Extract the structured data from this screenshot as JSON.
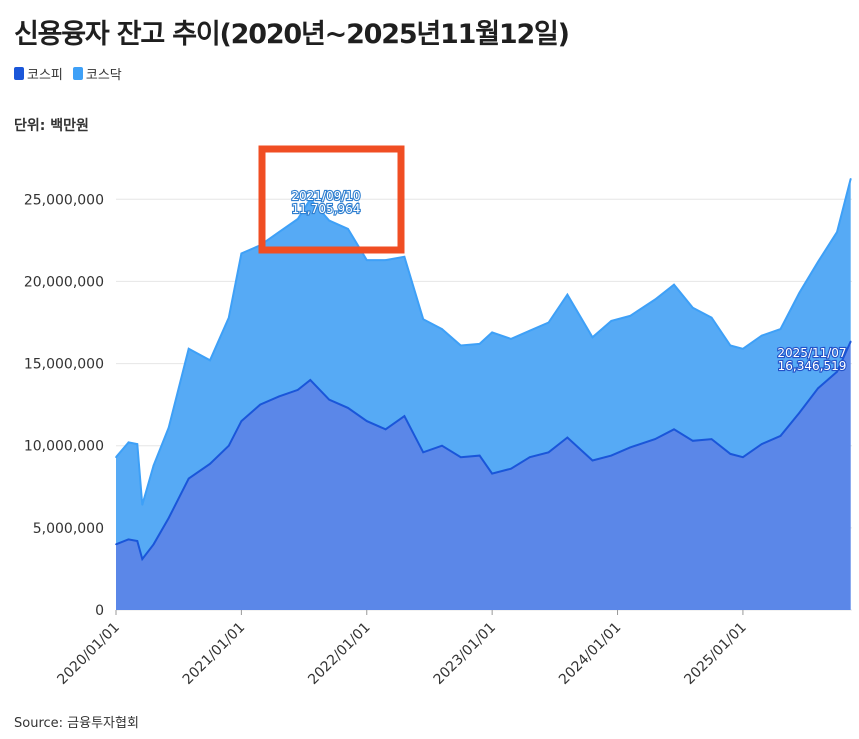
{
  "title": "신용융자 잔고 추이(2020년~2025년11월12일)",
  "legend": [
    {
      "label": "코스피",
      "color": "#1a56d9"
    },
    {
      "label": "코스닥",
      "color": "#3ea0f7"
    }
  ],
  "unit_label": "단위: 백만원",
  "source": "Source: 금융투자협회",
  "chart_data": {
    "type": "area",
    "stacked": true,
    "y_ticks": [
      "0",
      "5,000,000",
      "10,000,000",
      "15,000,000",
      "20,000,000",
      "25,000,000"
    ],
    "y_tick_values": [
      0,
      5000000,
      10000000,
      15000000,
      20000000,
      25000000
    ],
    "ylim": [
      0,
      28000000
    ],
    "x_ticks": [
      "2020/01/01",
      "2021/01/01",
      "2022/01/01",
      "2023/01/01",
      "2024/01/01",
      "2025/01/01"
    ],
    "x_tick_values": [
      2020.0,
      2021.0,
      2022.0,
      2023.0,
      2024.0,
      2025.0
    ],
    "xlim": [
      2020.0,
      2025.87
    ],
    "grid": true,
    "legend_position": "top-left",
    "series": [
      {
        "name": "코스피",
        "color": "#1a56d9",
        "fill": "#5b87e8",
        "x": [
          2020.0,
          2020.1,
          2020.17,
          2020.21,
          2020.3,
          2020.42,
          2020.58,
          2020.75,
          2020.9,
          2021.0,
          2021.15,
          2021.3,
          2021.45,
          2021.55,
          2021.7,
          2021.85,
          2022.0,
          2022.15,
          2022.3,
          2022.45,
          2022.6,
          2022.75,
          2022.9,
          2023.0,
          2023.15,
          2023.3,
          2023.45,
          2023.6,
          2023.8,
          2023.95,
          2024.1,
          2024.3,
          2024.45,
          2024.6,
          2024.75,
          2024.9,
          2025.0,
          2025.15,
          2025.3,
          2025.45,
          2025.6,
          2025.75,
          2025.86
        ],
        "values": [
          4000000,
          4300000,
          4200000,
          3100000,
          4000000,
          5600000,
          8000000,
          8900000,
          10000000,
          11500000,
          12500000,
          13000000,
          13400000,
          14000000,
          12800000,
          12300000,
          11500000,
          11000000,
          11800000,
          9600000,
          10000000,
          9300000,
          9400000,
          8300000,
          8600000,
          9300000,
          9600000,
          10500000,
          9100000,
          9400000,
          9900000,
          10400000,
          11000000,
          10300000,
          10400000,
          9500000,
          9300000,
          10100000,
          10600000,
          12000000,
          13500000,
          14500000,
          16346519
        ],
        "annotation": {
          "date": "2025/11/07",
          "value": "16,346,519"
        }
      },
      {
        "name": "코스닥",
        "color": "#3ea0f7",
        "fill": "#56aaf5",
        "x": [
          2020.0,
          2020.1,
          2020.17,
          2020.21,
          2020.3,
          2020.42,
          2020.58,
          2020.75,
          2020.9,
          2021.0,
          2021.15,
          2021.3,
          2021.45,
          2021.55,
          2021.7,
          2021.85,
          2022.0,
          2022.15,
          2022.3,
          2022.45,
          2022.6,
          2022.75,
          2022.9,
          2023.0,
          2023.15,
          2023.3,
          2023.45,
          2023.6,
          2023.8,
          2023.95,
          2024.1,
          2024.3,
          2024.45,
          2024.6,
          2024.75,
          2024.9,
          2025.0,
          2025.15,
          2025.3,
          2025.45,
          2025.6,
          2025.75,
          2025.86
        ],
        "values": [
          5300000,
          5900000,
          5900000,
          3300000,
          4800000,
          5500000,
          7900000,
          6300000,
          7800000,
          10200000,
          9700000,
          10000000,
          10400000,
          11000000,
          10900000,
          10900000,
          9800000,
          10300000,
          9700000,
          8100000,
          7100000,
          6800000,
          6800000,
          8600000,
          7900000,
          7700000,
          7900000,
          8700000,
          7500000,
          8200000,
          8000000,
          8500000,
          8800000,
          8100000,
          7400000,
          6600000,
          6600000,
          6600000,
          6500000,
          7300000,
          7700000,
          8500000,
          9900000
        ],
        "annotation": {
          "date": "2021/09/10",
          "value": "11,705,964"
        }
      }
    ]
  }
}
